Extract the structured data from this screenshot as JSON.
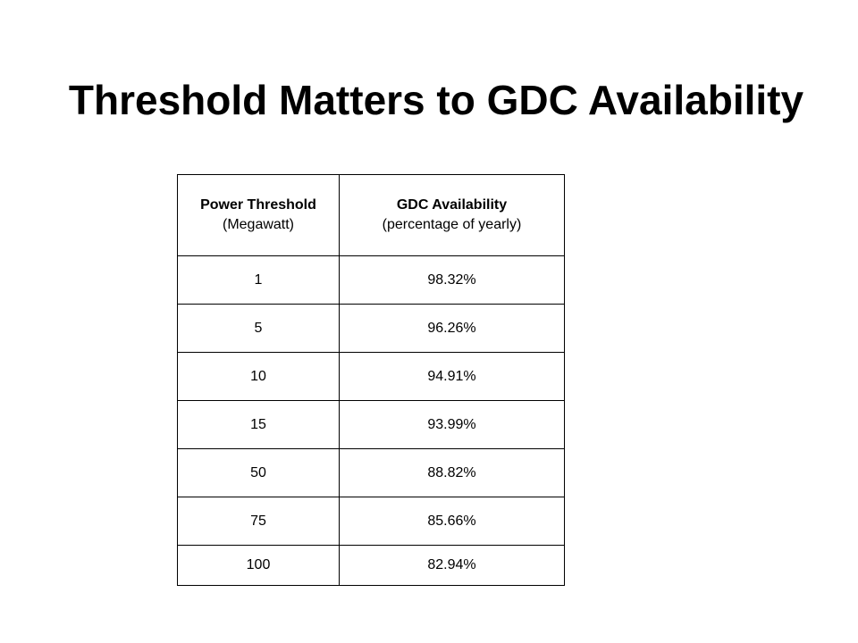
{
  "slide": {
    "title": "Threshold Matters to GDC Availability"
  },
  "table": {
    "headers": [
      {
        "label": "Power Threshold",
        "sublabel": "(Megawatt)"
      },
      {
        "label": "GDC Availability",
        "sublabel": "(percentage of yearly)"
      }
    ],
    "rows": [
      {
        "threshold": "1",
        "availability": "98.32%"
      },
      {
        "threshold": "5",
        "availability": "96.26%"
      },
      {
        "threshold": "10",
        "availability": "94.91%"
      },
      {
        "threshold": "15",
        "availability": "93.99%"
      },
      {
        "threshold": "50",
        "availability": "88.82%"
      },
      {
        "threshold": "75",
        "availability": "85.66%"
      },
      {
        "threshold": "100",
        "availability": "82.94%"
      }
    ]
  }
}
